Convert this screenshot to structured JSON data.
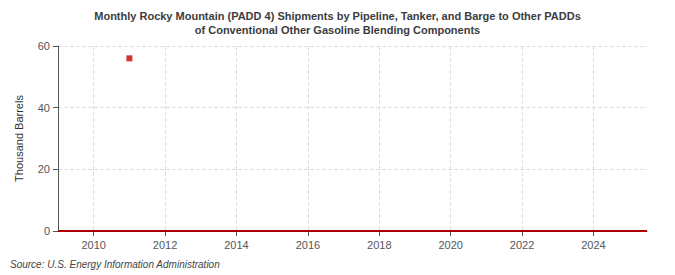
{
  "chart_data": {
    "type": "line",
    "title": "Monthly Rocky Mountain (PADD 4) Shipments by Pipeline, Tanker, and Barge to Other PADDs\nof Conventional Other Gasoline Blending Components",
    "ylabel": "Thousand Barrels",
    "source": "Source: U.S. Energy Information Administration",
    "xlim": [
      2009.0,
      2025.5
    ],
    "ylim": [
      0,
      60
    ],
    "xticks": [
      2010,
      2012,
      2014,
      2016,
      2018,
      2020,
      2022,
      2024
    ],
    "yticks": [
      0,
      20,
      40,
      60
    ],
    "grid": true,
    "series": [
      {
        "type": "line",
        "color": "#aa0000",
        "x": [
          2009.0,
          2025.5
        ],
        "values": [
          0,
          0
        ]
      },
      {
        "type": "scatter",
        "color": "#cc0000",
        "marker": "square",
        "x": [
          2011.0
        ],
        "values": [
          56
        ]
      }
    ]
  }
}
